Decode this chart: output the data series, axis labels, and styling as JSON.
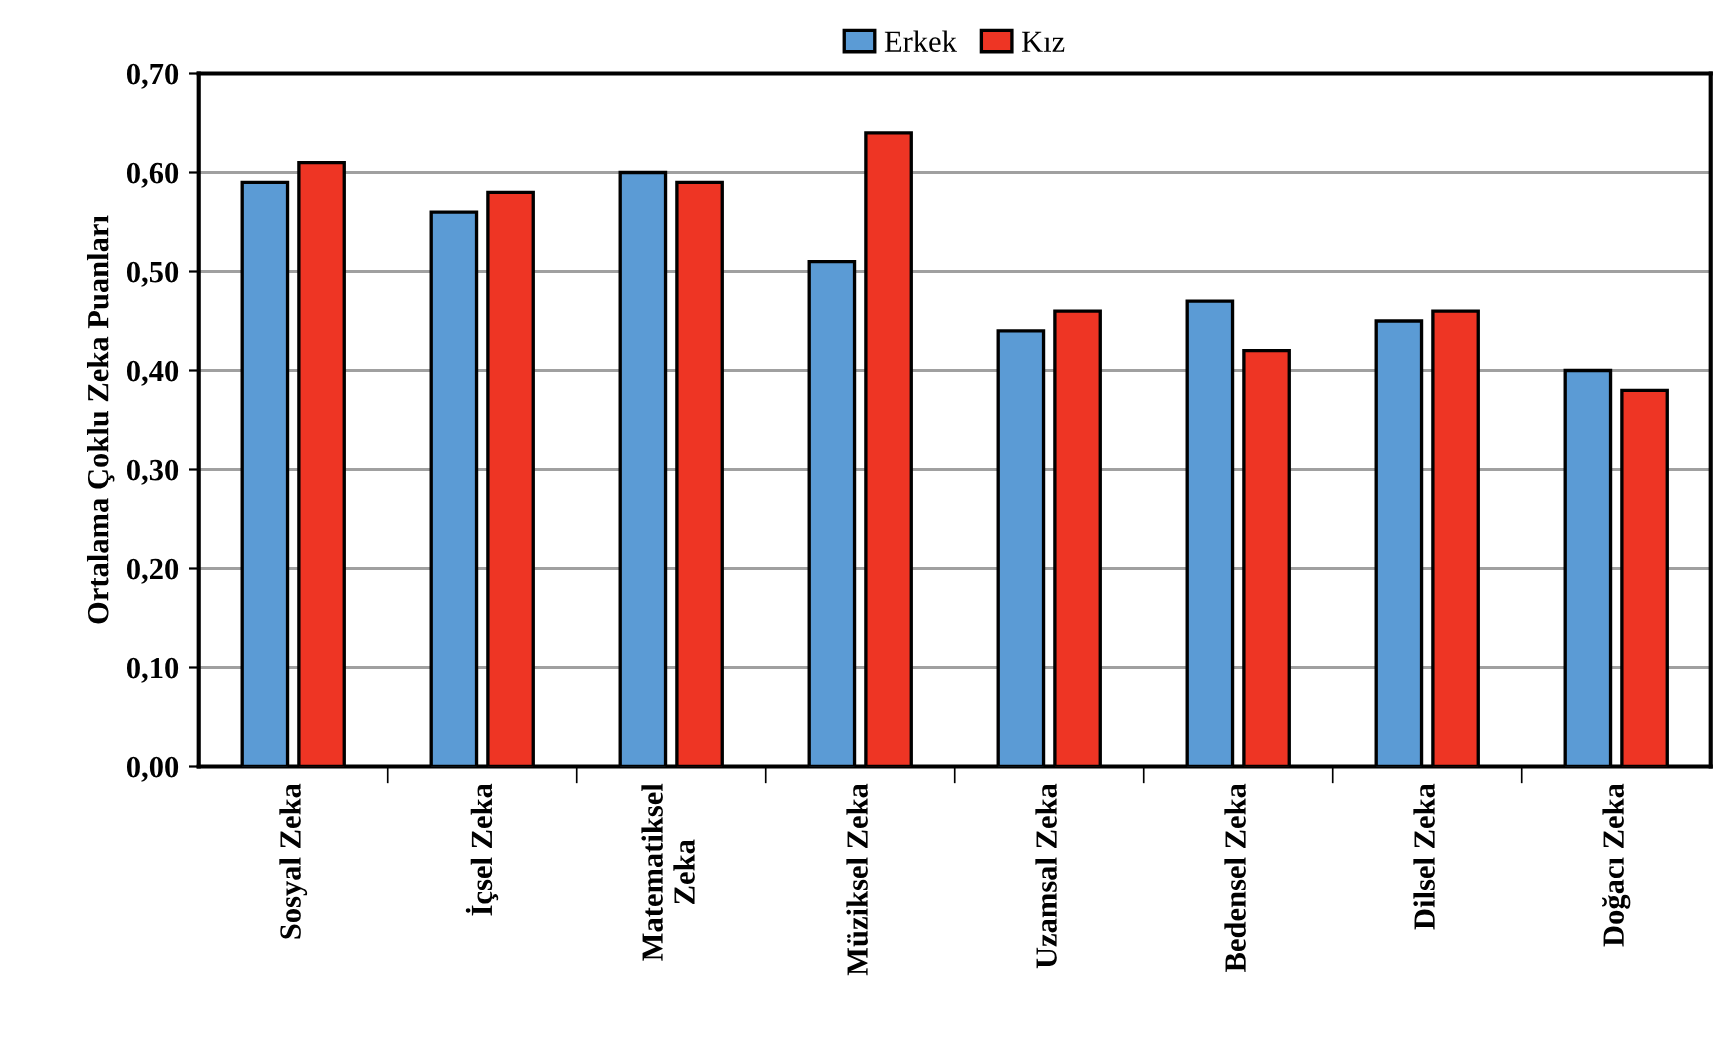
{
  "chart_data": {
    "type": "bar",
    "ylabel": "Ortalama Çoklu Zeka Puanları",
    "categories": [
      "Sosyal Zeka",
      "İçsel Zeka",
      "Matematiksel\nZeka",
      "Müziksel Zeka",
      "Uzamsal Zeka",
      "Bedensel Zeka",
      "Dilsel Zeka",
      "Doğacı Zeka"
    ],
    "series": [
      {
        "name": "Erkek",
        "color": "#5b9bd5",
        "values": [
          0.59,
          0.56,
          0.6,
          0.51,
          0.44,
          0.47,
          0.45,
          0.4
        ]
      },
      {
        "name": "Kız",
        "color": "#ee3524",
        "values": [
          0.61,
          0.58,
          0.59,
          0.64,
          0.46,
          0.42,
          0.46,
          0.38
        ]
      }
    ],
    "ylim": [
      0,
      0.7
    ],
    "yticks": [
      {
        "value": 0,
        "label": "0,00"
      },
      {
        "value": 0.1,
        "label": "0,10"
      },
      {
        "value": 0.2,
        "label": "0,20"
      },
      {
        "value": 0.3,
        "label": "0,30"
      },
      {
        "value": 0.4,
        "label": "0,40"
      },
      {
        "value": 0.5,
        "label": "0,50"
      },
      {
        "value": 0.6,
        "label": "0,60"
      },
      {
        "value": 0.7,
        "label": "0,70"
      }
    ],
    "grid": "y",
    "legend": "top"
  }
}
